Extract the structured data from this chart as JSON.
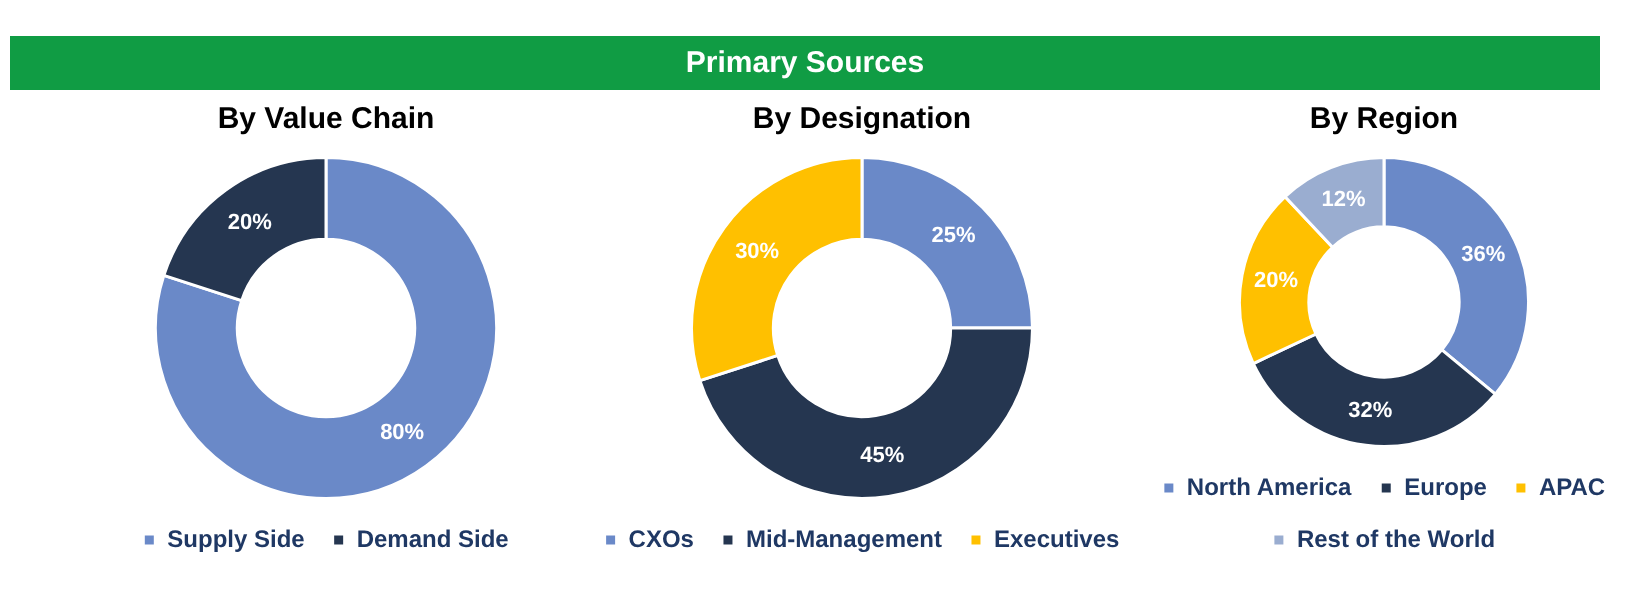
{
  "chart_data": [
    {
      "type": "other",
      "title": "Primary Sources",
      "color": "#109c44"
    },
    {
      "type": "donut",
      "title": "By Value Chain",
      "categories": [
        "Supply Side",
        "Demand Side"
      ],
      "values": [
        80,
        20
      ],
      "value_labels": [
        "80%",
        "20%"
      ],
      "colors": [
        "#6a89c8",
        "#253650"
      ],
      "legend": "bottom"
    },
    {
      "type": "donut",
      "title": "By Designation",
      "categories": [
        "CXOs",
        "Mid-Management",
        "Executives"
      ],
      "values": [
        25,
        45,
        30
      ],
      "value_labels": [
        "25%",
        "45%",
        "30%"
      ],
      "colors": [
        "#6a89c8",
        "#253650",
        "#ffc000"
      ],
      "legend": "bottom"
    },
    {
      "type": "donut",
      "title": "By Region",
      "categories": [
        "North America",
        "Europe",
        "APAC",
        "Rest of the World"
      ],
      "values": [
        36,
        32,
        20,
        12
      ],
      "value_labels": [
        "36%",
        "32%",
        "20%",
        "12%"
      ],
      "colors": [
        "#6a89c8",
        "#253650",
        "#ffc000",
        "#9aadd0"
      ],
      "legend": "bottom"
    }
  ]
}
